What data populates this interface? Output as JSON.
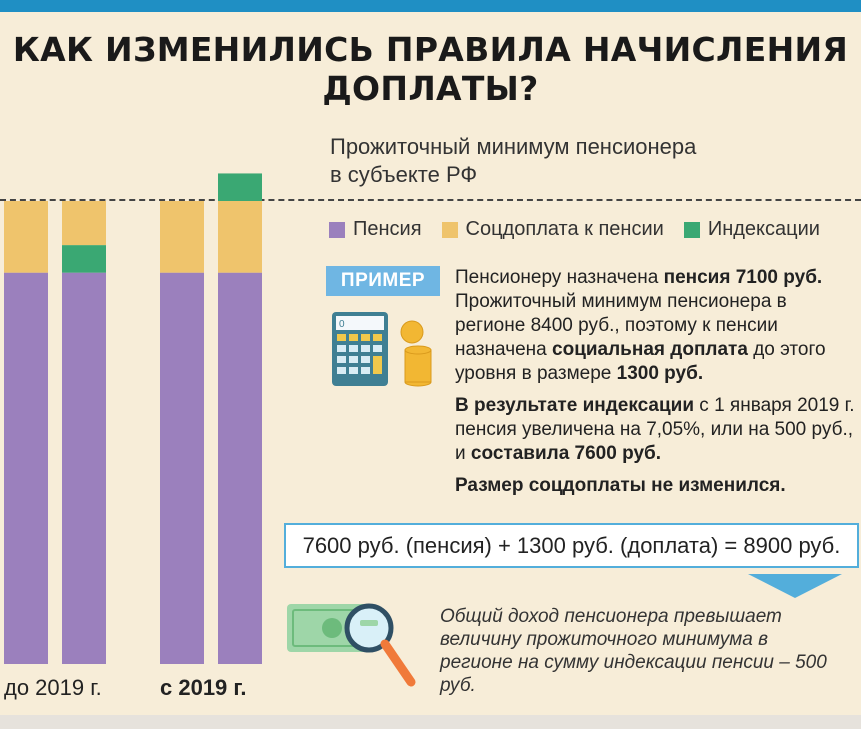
{
  "title": {
    "line1": "КАК ИЗМЕНИЛИСЬ ПРАВИЛА НАЧИСЛЕНИЯ",
    "line2": "ДОПЛАТЫ?"
  },
  "subsistence_label": {
    "line1": "Прожиточный минимум пенсионера",
    "line2": "в субъекте РФ"
  },
  "legend": [
    {
      "label": "Пенсия",
      "color": "#9b80bd"
    },
    {
      "label": "Соцдоплата к пенсии",
      "color": "#efc46c"
    },
    {
      "label": "Индексации",
      "color": "#3aa873"
    }
  ],
  "chart_data": {
    "type": "bar",
    "stacked": true,
    "groups": [
      "до 2019 г.",
      "с 2019 г."
    ],
    "bars": [
      {
        "group": "до 2019 г.",
        "segments": [
          {
            "series": "Пенсия",
            "value": 7100
          },
          {
            "series": "Соцдоплата к пенсии",
            "value": 1300
          }
        ]
      },
      {
        "group": "до 2019 г.",
        "segments": [
          {
            "series": "Пенсия",
            "value": 7100
          },
          {
            "series": "Индексации",
            "value": 500
          },
          {
            "series": "Соцдоплата к пенсии",
            "value": 800
          }
        ]
      },
      {
        "group": "с 2019 г.",
        "segments": [
          {
            "series": "Пенсия",
            "value": 7100
          },
          {
            "series": "Соцдоплата к пенсии",
            "value": 1300
          }
        ]
      },
      {
        "group": "с 2019 г.",
        "segments": [
          {
            "series": "Пенсия",
            "value": 7100
          },
          {
            "series": "Соцдоплата к пенсии",
            "value": 1300
          },
          {
            "series": "Индексации",
            "value": 500
          }
        ]
      }
    ],
    "reference_line": {
      "label": "Прожиточный минимум пенсионера в субъекте РФ",
      "value": 8400
    }
  },
  "x_labels": {
    "before": "до 2019 г.",
    "after": "с 2019 г."
  },
  "example": {
    "tag": "ПРИМЕР",
    "p1": [
      {
        "t": "Пенсионеру назначена ",
        "b": false
      },
      {
        "t": "пенсия 7100 руб.",
        "b": true
      },
      {
        "t": " Прожиточный минимум пенсионера в регионе 8400 руб., поэтому к пенсии назначена ",
        "b": false
      },
      {
        "t": "социальная доплата",
        "b": true
      },
      {
        "t": " до этого уровня в размере ",
        "b": false
      },
      {
        "t": "1300 руб.",
        "b": true
      }
    ],
    "p2": [
      {
        "t": "В результате индексации",
        "b": true
      },
      {
        "t": " с 1 января 2019 г. пенсия увеличена на 7,05%, или на 500 руб., и ",
        "b": false
      },
      {
        "t": "составила 7600 руб.",
        "b": true
      }
    ],
    "p3": "Размер соцдоплаты не изменился."
  },
  "formula": "7600 руб. (пенсия) + 1300 руб. (доплата) = 8900 руб.",
  "conclusion": "Общий доход пенсионера превышает величину прожиточного минимума в регионе на сумму индексации пенсии – 500 руб.",
  "colors": {
    "arrow": "#53aedb",
    "border": "#53aedb",
    "tag": "#6fb6e3"
  }
}
